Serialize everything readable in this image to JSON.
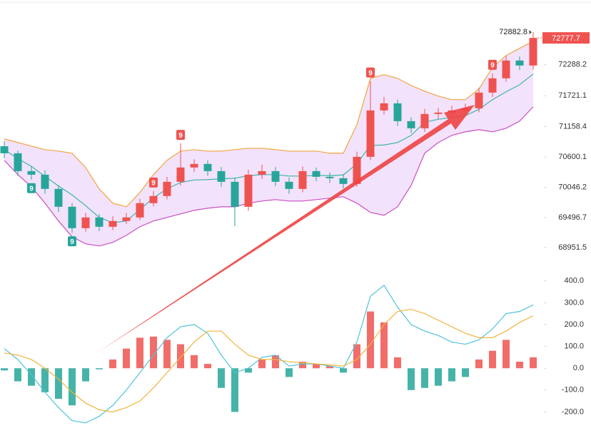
{
  "chart_data": {
    "type": "candlestick",
    "open": [
      70800,
      70671,
      70345,
      70280,
      70020,
      69694,
      69303,
      69499,
      69329,
      69434,
      69499,
      69760,
      69890,
      70150,
      70411,
      70476,
      70345,
      70150,
      69694,
      70280,
      70345,
      70150,
      70020,
      70345,
      70241,
      70215,
      70111,
      70606,
      71453,
      71583,
      71257,
      71127,
      71388,
      71414,
      71453,
      71492,
      71779,
      72040,
      72365,
      72274
    ],
    "high": [
      70890,
      70720,
      70430,
      70360,
      70090,
      69760,
      69580,
      69560,
      69520,
      69580,
      69840,
      69980,
      70240,
      70850,
      70560,
      70540,
      70420,
      70230,
      70370,
      70460,
      70420,
      70230,
      70430,
      70410,
      70320,
      70290,
      70700,
      71990,
      71700,
      71650,
      71330,
      71480,
      71500,
      71540,
      71580,
      71870,
      72130,
      72450,
      72440,
      72882.8
    ],
    "low": [
      70580,
      70260,
      70190,
      69930,
      69600,
      69220,
      69240,
      69250,
      69270,
      69380,
      69450,
      69700,
      69830,
      70080,
      70330,
      70260,
      70060,
      69340,
      69620,
      70200,
      70070,
      69930,
      69960,
      70160,
      70130,
      70030,
      70060,
      70550,
      71380,
      71170,
      71040,
      71060,
      71300,
      71340,
      71380,
      71420,
      71700,
      71980,
      72190,
      72200
    ],
    "close": [
      70671,
      70345,
      70280,
      70020,
      69694,
      69303,
      69499,
      69329,
      69434,
      69499,
      69760,
      69890,
      70150,
      70411,
      70476,
      70345,
      70150,
      69694,
      70280,
      70345,
      70150,
      70020,
      70345,
      70241,
      70215,
      70111,
      70606,
      71453,
      71583,
      71257,
      71127,
      71388,
      71414,
      71453,
      71492,
      71779,
      72040,
      72365,
      72274,
      72777.7
    ],
    "td_labels": [
      null,
      null,
      "9",
      null,
      null,
      "9",
      null,
      null,
      null,
      null,
      null,
      "9",
      null,
      "9",
      null,
      null,
      null,
      null,
      null,
      null,
      null,
      null,
      null,
      null,
      null,
      null,
      null,
      "9",
      null,
      null,
      null,
      null,
      null,
      null,
      null,
      null,
      "9",
      null,
      null,
      null
    ],
    "up_color": "#ef5350",
    "down_color": "#26a69a",
    "bollinger": {
      "fill": "#f3e2fb",
      "upper": {
        "color": "#f2a541",
        "values": [
          70933,
          70868,
          70802,
          70737,
          70711,
          70672,
          70411,
          70020,
          69760,
          69694,
          69955,
          70281,
          70542,
          70711,
          70737,
          70711,
          70711,
          70737,
          70763,
          70763,
          70737,
          70711,
          70711,
          70711,
          70672,
          70672,
          71193,
          72040,
          72106,
          72040,
          71910,
          71805,
          71715,
          71650,
          71650,
          71845,
          72236,
          72458,
          72588,
          72718
        ]
      },
      "middle": {
        "color": "#3fb5aa",
        "values": [
          70738,
          70575,
          70431,
          70249,
          70073,
          69910,
          69714,
          69499,
          69402,
          69434,
          69642,
          69858,
          70021,
          70138,
          70183,
          70190,
          70203,
          70216,
          70262,
          70281,
          70281,
          70255,
          70255,
          70268,
          70262,
          70275,
          70477,
          70815,
          70822,
          70867,
          70998,
          71239,
          71292,
          71324,
          71357,
          71474,
          71650,
          71793,
          71923,
          72119
        ]
      },
      "lower": {
        "color": "#c94fc4",
        "values": [
          70542,
          70281,
          70059,
          69760,
          69434,
          69147,
          69017,
          68978,
          69043,
          69173,
          69329,
          69434,
          69499,
          69564,
          69629,
          69668,
          69694,
          69694,
          69760,
          69799,
          69825,
          69799,
          69799,
          69825,
          69851,
          69877,
          69760,
          69590,
          69538,
          69694,
          70085,
          70672,
          70868,
          70998,
          71063,
          71102,
          71063,
          71128,
          71258,
          71519
        ]
      }
    },
    "ylim": [
      68650,
      73470
    ],
    "yticks": [
      72288.2,
      71721.1,
      71158.4,
      70600.1,
      70046.2,
      69496.7,
      68951.5
    ],
    "macd": {
      "type": "macd",
      "histogram": [
        -10,
        -60,
        -80,
        -110,
        -140,
        -170,
        -60,
        -5,
        40,
        90,
        140,
        145,
        130,
        110,
        60,
        20,
        -90,
        -200,
        -20,
        40,
        60,
        -40,
        30,
        20,
        10,
        -20,
        110,
        260,
        210,
        50,
        -100,
        -90,
        -80,
        -60,
        -40,
        40,
        80,
        130,
        30,
        50
      ],
      "dif": {
        "color": "#4fc3d9",
        "values": [
          90,
          40,
          -30,
          -110,
          -180,
          -240,
          -250,
          -220,
          -170,
          -100,
          -20,
          60,
          140,
          190,
          200,
          160,
          60,
          -20,
          0,
          50,
          60,
          10,
          20,
          20,
          10,
          0,
          120,
          330,
          380,
          280,
          200,
          170,
          150,
          120,
          110,
          130,
          180,
          250,
          260,
          290
        ]
      },
      "dea": {
        "color": "#f0b43c",
        "values": [
          70,
          60,
          40,
          0,
          -50,
          -110,
          -160,
          -190,
          -200,
          -180,
          -150,
          -90,
          -20,
          50,
          120,
          170,
          170,
          110,
          60,
          40,
          40,
          30,
          25,
          20,
          15,
          10,
          40,
          110,
          200,
          260,
          270,
          250,
          220,
          190,
          160,
          140,
          140,
          170,
          210,
          240
        ]
      },
      "ylim": [
        -290,
        445
      ],
      "yticks": [
        {
          "value": 400,
          "label": "400.0"
        },
        {
          "value": 300,
          "label": "300.0"
        },
        {
          "value": 200,
          "label": "200.0"
        },
        {
          "value": 100,
          "label": "100.0"
        },
        {
          "value": 0,
          "label": "0.0"
        },
        {
          "value": -100,
          "label": "-100.0"
        },
        {
          "value": -200,
          "label": "-200.0"
        }
      ]
    }
  }
}
